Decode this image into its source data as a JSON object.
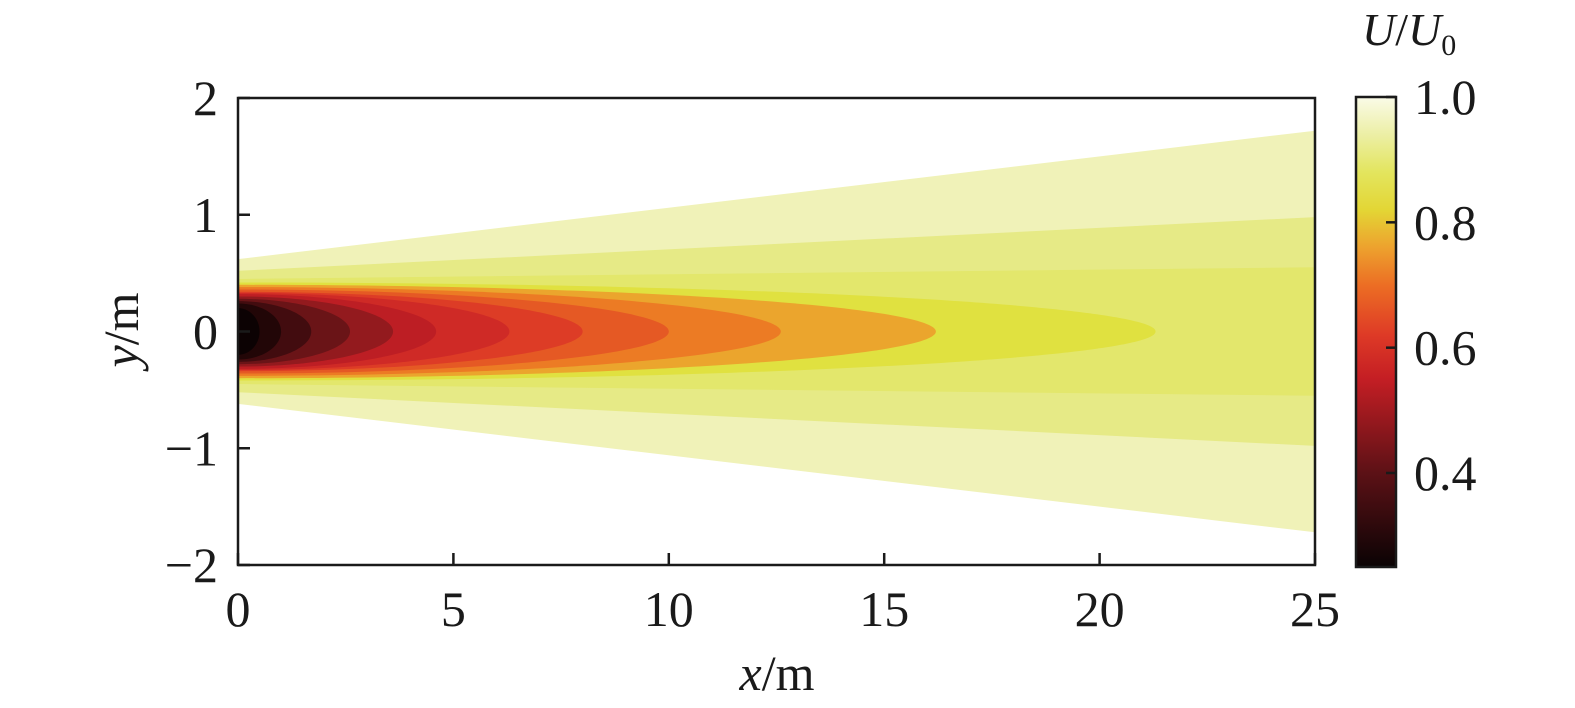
{
  "chart_data": {
    "type": "heatmap",
    "title": "",
    "xlabel": {
      "var": "x",
      "unit": "/m"
    },
    "ylabel": {
      "var": "y",
      "unit": "/m"
    },
    "xlim": [
      0,
      25
    ],
    "ylim": [
      -2,
      2
    ],
    "xticks": [
      {
        "value": 0,
        "label": "0"
      },
      {
        "value": 5,
        "label": "5"
      },
      {
        "value": 10,
        "label": "10"
      },
      {
        "value": 15,
        "label": "15"
      },
      {
        "value": 20,
        "label": "20"
      },
      {
        "value": 25,
        "label": "25"
      }
    ],
    "yticks": [
      {
        "value": 2,
        "label": "2"
      },
      {
        "value": 1,
        "label": "1"
      },
      {
        "value": 0,
        "label": "0"
      },
      {
        "value": -1,
        "label": "−1"
      },
      {
        "value": -2,
        "label": "−2"
      }
    ],
    "grid": false,
    "colorbar": {
      "title": {
        "num": "U",
        "sep": "/",
        "den": "U",
        "sub": "0"
      },
      "range": [
        0.25,
        1.0
      ],
      "ticks": [
        {
          "value": 1.0,
          "label": "1.0"
        },
        {
          "value": 0.8,
          "label": "0.8"
        },
        {
          "value": 0.6,
          "label": "0.6"
        },
        {
          "value": 0.4,
          "label": "0.4"
        }
      ],
      "colormap": [
        {
          "value": 0.25,
          "color": "#0a0304"
        },
        {
          "value": 0.4,
          "color": "#5c1116"
        },
        {
          "value": 0.55,
          "color": "#c41e24"
        },
        {
          "value": 0.62,
          "color": "#de3a26"
        },
        {
          "value": 0.7,
          "color": "#ec6e24"
        },
        {
          "value": 0.76,
          "color": "#eda22e"
        },
        {
          "value": 0.82,
          "color": "#e3d635"
        },
        {
          "value": 0.88,
          "color": "#e3e55e"
        },
        {
          "value": 0.94,
          "color": "#ecefa5"
        },
        {
          "value": 1.0,
          "color": "#fafbe8"
        }
      ]
    },
    "contours": [
      {
        "level": 0.94,
        "color": "#f0f2b8",
        "half_width_start": 0.62,
        "half_width_end": 1.72,
        "length": 25
      },
      {
        "level": 0.9,
        "color": "#e6ea86",
        "half_width_start": 0.52,
        "half_width_end": 0.98,
        "length": 25
      },
      {
        "level": 0.87,
        "color": "#e3e76c",
        "half_width_start": 0.45,
        "half_width_end": 0.55,
        "length": 25
      },
      {
        "level": 0.84,
        "color": "#e0e140",
        "half_width_start": 0.42,
        "half_width_end": 0.42,
        "length": 21.3
      },
      {
        "level": 0.78,
        "color": "#eba52d",
        "half_width_start": 0.4,
        "half_width_end": 0.4,
        "length": 16.2
      },
      {
        "level": 0.72,
        "color": "#ec7b24",
        "half_width_start": 0.38,
        "half_width_end": 0.38,
        "length": 12.6
      },
      {
        "level": 0.67,
        "color": "#e55924",
        "half_width_start": 0.36,
        "half_width_end": 0.36,
        "length": 10.0
      },
      {
        "level": 0.62,
        "color": "#dd3c26",
        "half_width_start": 0.34,
        "half_width_end": 0.34,
        "length": 8.0
      },
      {
        "level": 0.57,
        "color": "#cf2a26",
        "half_width_start": 0.33,
        "half_width_end": 0.33,
        "length": 6.3
      },
      {
        "level": 0.53,
        "color": "#bd1e24",
        "half_width_start": 0.32,
        "half_width_end": 0.32,
        "length": 4.6
      },
      {
        "level": 0.48,
        "color": "#931a1e",
        "half_width_start": 0.3,
        "half_width_end": 0.3,
        "length": 3.6
      },
      {
        "level": 0.43,
        "color": "#6a1417",
        "half_width_start": 0.28,
        "half_width_end": 0.28,
        "length": 2.6
      },
      {
        "level": 0.38,
        "color": "#420c0f",
        "half_width_start": 0.26,
        "half_width_end": 0.26,
        "length": 1.7
      },
      {
        "level": 0.33,
        "color": "#220607",
        "half_width_start": 0.24,
        "half_width_end": 0.24,
        "length": 1.0
      },
      {
        "level": 0.28,
        "color": "#0c0203",
        "half_width_start": 0.2,
        "half_width_end": 0.2,
        "length": 0.5
      }
    ]
  }
}
